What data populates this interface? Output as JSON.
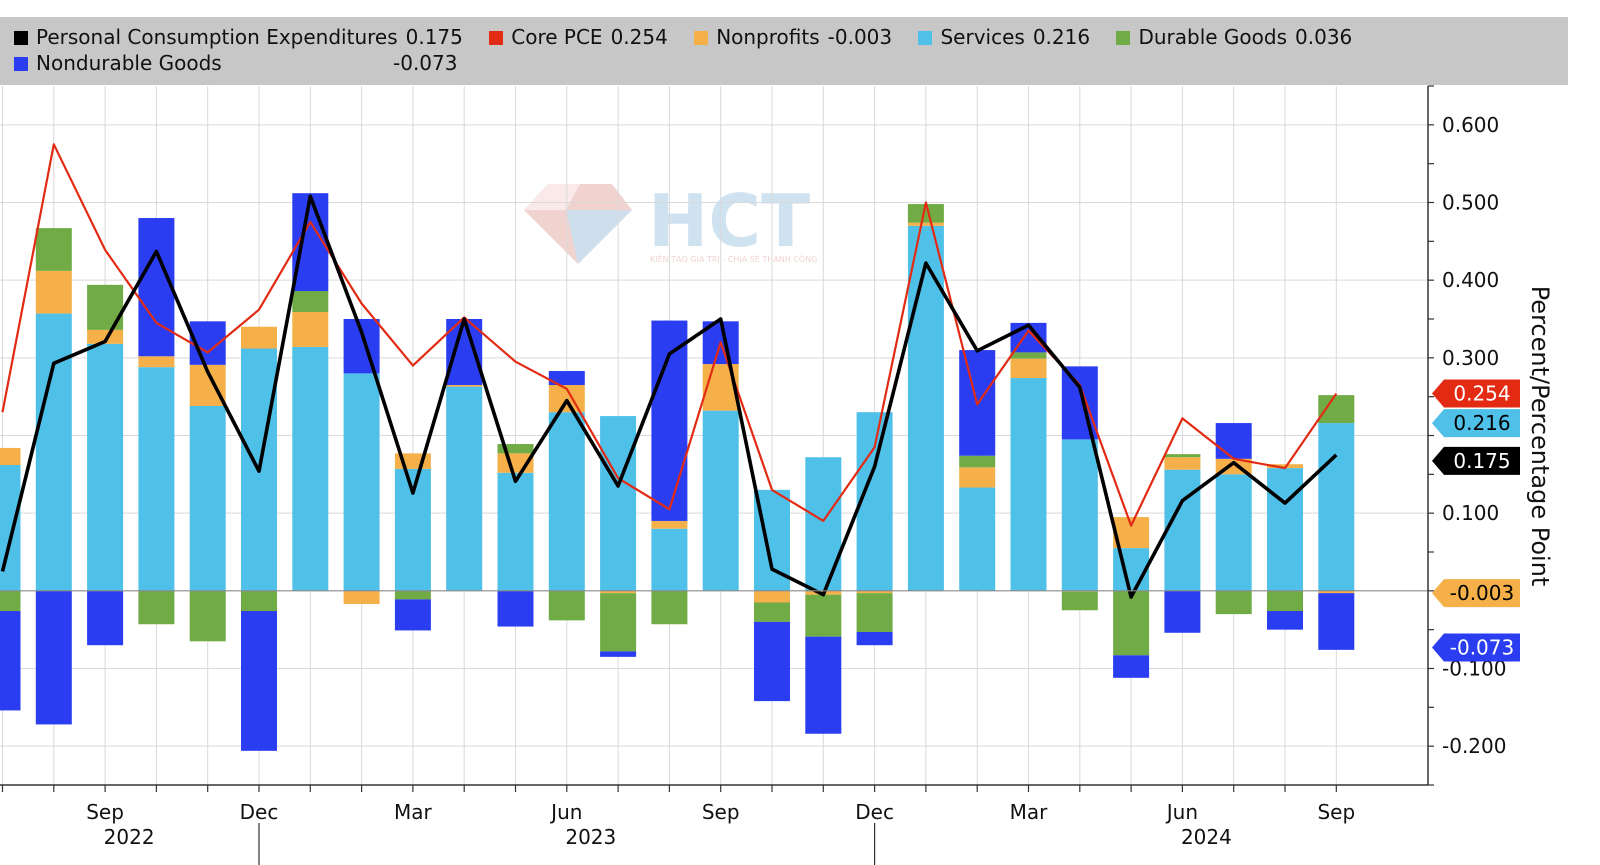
{
  "chart_data": {
    "type": "bar",
    "stacked": true,
    "months": [
      "Jul 2022",
      "Aug 2022",
      "Sep 2022",
      "Oct 2022",
      "Nov 2022",
      "Dec 2022",
      "Jan 2023",
      "Feb 2023",
      "Mar 2023",
      "Apr 2023",
      "May 2023",
      "Jun 2023",
      "Jul 2023",
      "Aug 2023",
      "Sep 2023",
      "Oct 2023",
      "Nov 2023",
      "Dec 2023",
      "Jan 2024",
      "Feb 2024",
      "Mar 2024",
      "Apr 2024",
      "May 2024",
      "Jun 2024",
      "Jul 2024",
      "Aug 2024",
      "Sep 2024"
    ],
    "series": [
      {
        "name": "Services",
        "kind": "bar",
        "color": "#4fc0e8",
        "legend_value": "0.216",
        "values": [
          0.162,
          0.357,
          0.318,
          0.288,
          0.238,
          0.312,
          0.314,
          0.28,
          0.157,
          0.263,
          0.152,
          0.23,
          0.225,
          0.08,
          0.232,
          0.13,
          0.172,
          0.23,
          0.47,
          0.133,
          0.274,
          0.195,
          0.055,
          0.156,
          0.15,
          0.158,
          0.216
        ]
      },
      {
        "name": "Nonprofits",
        "kind": "bar",
        "color": "#f5b04a",
        "legend_value": "-0.003",
        "values": [
          0.022,
          0.055,
          0.018,
          0.014,
          0.053,
          0.028,
          0.045,
          -0.017,
          0.02,
          0.002,
          0.025,
          0.035,
          -0.003,
          0.01,
          0.06,
          -0.015,
          -0.005,
          -0.003,
          0.004,
          0.026,
          0.025,
          -0.001,
          0.04,
          0.016,
          0.02,
          0.005,
          -0.003
        ]
      },
      {
        "name": "Durable Goods",
        "kind": "bar",
        "color": "#70ab46",
        "legend_value": "0.036",
        "values": [
          -0.026,
          0.055,
          0.058,
          -0.043,
          -0.065,
          -0.026,
          0.027,
          0.0,
          -0.011,
          0.0,
          0.012,
          -0.038,
          -0.075,
          -0.043,
          0.0,
          -0.025,
          -0.054,
          -0.05,
          0.024,
          0.015,
          0.008,
          -0.024,
          -0.083,
          0.004,
          -0.03,
          -0.026,
          0.036
        ]
      },
      {
        "name": "Nondurable Goods",
        "kind": "bar",
        "color": "#2b3df0",
        "legend_value": "-0.073",
        "values": [
          -0.128,
          -0.172,
          -0.07,
          0.178,
          0.056,
          -0.18,
          0.126,
          0.07,
          -0.04,
          0.085,
          -0.046,
          0.018,
          -0.007,
          0.258,
          0.055,
          -0.102,
          -0.125,
          -0.017,
          0.0,
          0.136,
          0.038,
          0.094,
          -0.029,
          -0.054,
          0.046,
          -0.024,
          -0.073
        ]
      },
      {
        "name": "Personal Consumption Expenditures",
        "kind": "line",
        "color": "#000000",
        "legend_value": "0.175",
        "values": [
          0.025,
          0.293,
          0.321,
          0.437,
          0.282,
          0.154,
          0.508,
          0.333,
          0.126,
          0.35,
          0.141,
          0.245,
          0.135,
          0.305,
          0.35,
          0.028,
          -0.005,
          0.16,
          0.422,
          0.309,
          0.342,
          0.262,
          -0.008,
          0.116,
          0.165,
          0.113,
          0.175
        ]
      },
      {
        "name": "Core PCE",
        "kind": "line",
        "color": "#e32b14",
        "legend_value": "0.254",
        "values": [
          0.23,
          0.575,
          0.439,
          0.345,
          0.307,
          0.362,
          0.475,
          0.37,
          0.29,
          0.352,
          0.295,
          0.26,
          0.145,
          0.105,
          0.32,
          0.13,
          0.09,
          0.185,
          0.5,
          0.24,
          0.335,
          0.265,
          0.084,
          0.222,
          0.17,
          0.158,
          0.254
        ]
      }
    ],
    "legend_order": [
      "Personal Consumption Expenditures",
      "Core PCE",
      "Nonprofits",
      "Services",
      "Durable Goods",
      "Nondurable Goods"
    ],
    "ylim": [
      -0.25,
      0.65
    ],
    "y_ticks": [
      {
        "value": 0.6,
        "label": "0.600"
      },
      {
        "value": 0.5,
        "label": "0.500"
      },
      {
        "value": 0.4,
        "label": "0.400"
      },
      {
        "value": 0.3,
        "label": "0.300"
      },
      {
        "value": 0.1,
        "label": "0.100"
      },
      {
        "value": -0.1,
        "label": "-0.100"
      },
      {
        "value": -0.2,
        "label": "-0.200"
      }
    ],
    "ylabel": "Percent/Percentage Point",
    "x_month_labels": [
      {
        "month": "Sep 2022",
        "label": "Sep"
      },
      {
        "month": "Dec 2022",
        "label": "Dec"
      },
      {
        "month": "Mar 2023",
        "label": "Mar"
      },
      {
        "month": "Jun 2023",
        "label": "Jun"
      },
      {
        "month": "Sep 2023",
        "label": "Sep"
      },
      {
        "month": "Dec 2023",
        "label": "Dec"
      },
      {
        "month": "Mar 2024",
        "label": "Mar"
      },
      {
        "month": "Jun 2024",
        "label": "Jun"
      },
      {
        "month": "Sep 2024",
        "label": "Sep"
      }
    ],
    "x_year_labels": [
      {
        "month": "Sep 2022",
        "label": "2022"
      },
      {
        "month": "Jun 2023",
        "label": "2023"
      },
      {
        "month": "Jun 2024",
        "label": "2024"
      }
    ],
    "year_separators": [
      "Dec 2022",
      "Dec 2023"
    ],
    "end_labels": [
      {
        "series": "Core PCE",
        "value": 0.254,
        "label": "0.254",
        "bg": "#e32b14",
        "fg": "#ffffff"
      },
      {
        "series": "Services",
        "value": 0.216,
        "label": "0.216",
        "bg": "#4fc0e8",
        "fg": "#000000"
      },
      {
        "series": "Personal Consumption Expenditures",
        "value": 0.175,
        "label": "0.175",
        "bg": "#000000",
        "fg": "#ffffff"
      },
      {
        "series": "Nonprofits",
        "value": -0.003,
        "label": "-0.003",
        "bg": "#f5b04a",
        "fg": "#000000"
      },
      {
        "series": "Nondurable Goods",
        "value": -0.073,
        "label": "-0.073",
        "bg": "#2b3df0",
        "fg": "#ffffff"
      }
    ],
    "grid": true,
    "legend_position": "top"
  },
  "watermark": {
    "brand": "HCT",
    "tagline": "KIẾN TẠO GIÁ TRỊ - CHIA SẺ THÀNH CÔNG"
  }
}
